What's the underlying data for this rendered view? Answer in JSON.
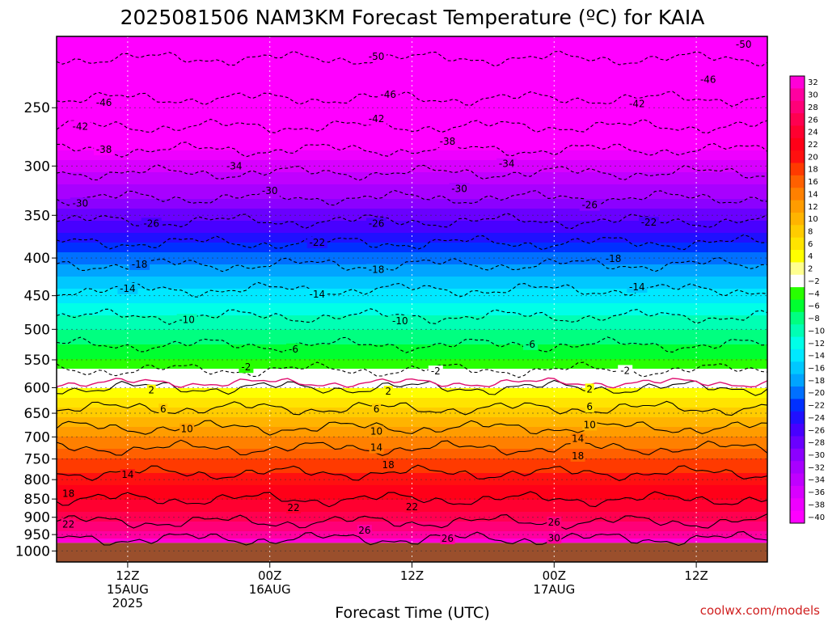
{
  "chart_data": {
    "type": "heatmap",
    "title": "2025081506 NAM3KM Forecast Temperature (ºC) for KAIA",
    "xlabel": "Forecast Time (UTC)",
    "ylabel": "",
    "credit": "coolwx.com/models",
    "x_ticks": [
      {
        "lines": [
          "12Z",
          "15AUG",
          "2025"
        ],
        "hour": 6
      },
      {
        "lines": [
          "00Z",
          "16AUG"
        ],
        "hour": 18
      },
      {
        "lines": [
          "12Z"
        ],
        "hour": 30
      },
      {
        "lines": [
          "00Z",
          "17AUG"
        ],
        "hour": 42
      },
      {
        "lines": [
          "12Z"
        ],
        "hour": 54
      }
    ],
    "x_range_hours": [
      0,
      60
    ],
    "y_scale": "log-pressure",
    "y_ticks": [
      250,
      300,
      350,
      400,
      450,
      500,
      550,
      600,
      650,
      700,
      750,
      800,
      850,
      900,
      950,
      1000
    ],
    "y_range_hpa": [
      200,
      1035
    ],
    "surface_pressure_hpa": 975,
    "colorbar_labels": [
      "32",
      "30",
      "28",
      "26",
      "24",
      "22",
      "20",
      "18",
      "16",
      "14",
      "12",
      "10",
      "8",
      "6",
      "4",
      "2",
      "−2",
      "−4",
      "−6",
      "−8",
      "−10",
      "−12",
      "−14",
      "−16",
      "−18",
      "−20",
      "−22",
      "−24",
      "−26",
      "−28",
      "−30",
      "−32",
      "−34",
      "−36",
      "−38",
      "−40"
    ],
    "temperature_profile": [
      {
        "p": 200,
        "t": -52
      },
      {
        "p": 250,
        "t": -45
      },
      {
        "p": 300,
        "t": -35
      },
      {
        "p": 350,
        "t": -27
      },
      {
        "p": 400,
        "t": -19
      },
      {
        "p": 450,
        "t": -13
      },
      {
        "p": 500,
        "t": -8
      },
      {
        "p": 550,
        "t": -4
      },
      {
        "p": 585,
        "t": 0
      },
      {
        "p": 600,
        "t": 2
      },
      {
        "p": 650,
        "t": 7
      },
      {
        "p": 700,
        "t": 12
      },
      {
        "p": 750,
        "t": 16
      },
      {
        "p": 800,
        "t": 19
      },
      {
        "p": 850,
        "t": 22
      },
      {
        "p": 900,
        "t": 25
      },
      {
        "p": 950,
        "t": 29
      },
      {
        "p": 975,
        "t": 31
      }
    ],
    "contour_labels": [
      {
        "t": "-50",
        "hour": 27,
        "p": 213
      },
      {
        "t": "-50",
        "hour": 58,
        "p": 205
      },
      {
        "t": "-46",
        "hour": 4,
        "p": 246
      },
      {
        "t": "-46",
        "hour": 28,
        "p": 240
      },
      {
        "t": "-46",
        "hour": 55,
        "p": 229
      },
      {
        "t": "-42",
        "hour": 2,
        "p": 265
      },
      {
        "t": "-42",
        "hour": 27,
        "p": 259
      },
      {
        "t": "-42",
        "hour": 49,
        "p": 247
      },
      {
        "t": "-38",
        "hour": 4,
        "p": 285
      },
      {
        "t": "-38",
        "hour": 33,
        "p": 278
      },
      {
        "t": "-34",
        "hour": 15,
        "p": 300
      },
      {
        "t": "-34",
        "hour": 38,
        "p": 298
      },
      {
        "t": "-30",
        "hour": 2,
        "p": 337
      },
      {
        "t": "-30",
        "hour": 18,
        "p": 324
      },
      {
        "t": "-30",
        "hour": 34,
        "p": 322
      },
      {
        "t": "-26",
        "hour": 8,
        "p": 359
      },
      {
        "t": "-26",
        "hour": 27,
        "p": 359
      },
      {
        "t": "-26",
        "hour": 45,
        "p": 339
      },
      {
        "t": "-22",
        "hour": 22,
        "p": 381
      },
      {
        "t": "-22",
        "hour": 50,
        "p": 358
      },
      {
        "t": "-18",
        "hour": 7,
        "p": 408
      },
      {
        "t": "-18",
        "hour": 27,
        "p": 415
      },
      {
        "t": "-18",
        "hour": 47,
        "p": 401
      },
      {
        "t": "-14",
        "hour": 6,
        "p": 440
      },
      {
        "t": "-14",
        "hour": 22,
        "p": 448
      },
      {
        "t": "-14",
        "hour": 49,
        "p": 438
      },
      {
        "t": "-10",
        "hour": 11,
        "p": 485
      },
      {
        "t": "-10",
        "hour": 29,
        "p": 487
      },
      {
        "t": "-6",
        "hour": 20,
        "p": 532
      },
      {
        "t": "-6",
        "hour": 40,
        "p": 524
      },
      {
        "t": "-2",
        "hour": 16,
        "p": 563
      },
      {
        "t": "-2",
        "hour": 32,
        "p": 570
      },
      {
        "t": "-2",
        "hour": 48,
        "p": 569
      },
      {
        "t": "2",
        "hour": 8,
        "p": 605
      },
      {
        "t": "2",
        "hour": 28,
        "p": 607
      },
      {
        "t": "2",
        "hour": 45,
        "p": 603
      },
      {
        "t": "6",
        "hour": 9,
        "p": 642
      },
      {
        "t": "6",
        "hour": 27,
        "p": 642
      },
      {
        "t": "6",
        "hour": 45,
        "p": 637
      },
      {
        "t": "10",
        "hour": 11,
        "p": 683
      },
      {
        "t": "10",
        "hour": 27,
        "p": 688
      },
      {
        "t": "10",
        "hour": 45,
        "p": 674
      },
      {
        "t": "14",
        "hour": 27,
        "p": 724
      },
      {
        "t": "14",
        "hour": 44,
        "p": 704
      },
      {
        "t": "14",
        "hour": 6,
        "p": 788
      },
      {
        "t": "18",
        "hour": 28,
        "p": 764
      },
      {
        "t": "18",
        "hour": 44,
        "p": 743
      },
      {
        "t": "18",
        "hour": 1,
        "p": 836
      },
      {
        "t": "22",
        "hour": 20,
        "p": 874
      },
      {
        "t": "22",
        "hour": 30,
        "p": 871
      },
      {
        "t": "22",
        "hour": 1,
        "p": 920
      },
      {
        "t": "26",
        "hour": 26,
        "p": 938
      },
      {
        "t": "26",
        "hour": 33,
        "p": 962
      },
      {
        "t": "26",
        "hour": 42,
        "p": 914
      },
      {
        "t": "30",
        "hour": 42,
        "p": 960
      }
    ]
  }
}
